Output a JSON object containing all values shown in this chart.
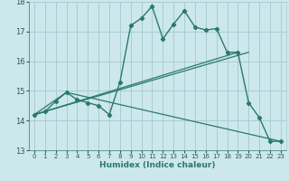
{
  "title": "",
  "xlabel": "Humidex (Indice chaleur)",
  "xlim": [
    -0.5,
    23.5
  ],
  "ylim": [
    13,
    18
  ],
  "yticks": [
    13,
    14,
    15,
    16,
    17,
    18
  ],
  "xticks": [
    0,
    1,
    2,
    3,
    4,
    5,
    6,
    7,
    8,
    9,
    10,
    11,
    12,
    13,
    14,
    15,
    16,
    17,
    18,
    19,
    20,
    21,
    22,
    23
  ],
  "background_color": "#cce8ec",
  "grid_color": "#aaccd4",
  "line_color": "#2a7a6a",
  "line1_x": [
    0,
    1,
    2,
    3,
    4,
    5,
    6,
    7,
    8,
    9,
    10,
    11,
    12,
    13,
    14,
    15,
    16,
    17,
    18,
    19,
    20,
    21,
    22,
    23
  ],
  "line1_y": [
    14.2,
    14.3,
    14.65,
    14.95,
    14.7,
    14.6,
    14.5,
    14.2,
    15.3,
    17.2,
    17.45,
    17.85,
    16.75,
    17.25,
    17.7,
    17.15,
    17.05,
    17.1,
    16.3,
    16.3,
    14.6,
    14.1,
    13.3,
    13.3
  ],
  "line2_x": [
    0,
    19
  ],
  "line2_y": [
    14.2,
    16.3
  ],
  "line3_x": [
    0,
    3,
    23
  ],
  "line3_y": [
    14.2,
    14.95,
    13.3
  ],
  "line4_x": [
    0,
    20
  ],
  "line4_y": [
    14.2,
    16.3
  ]
}
